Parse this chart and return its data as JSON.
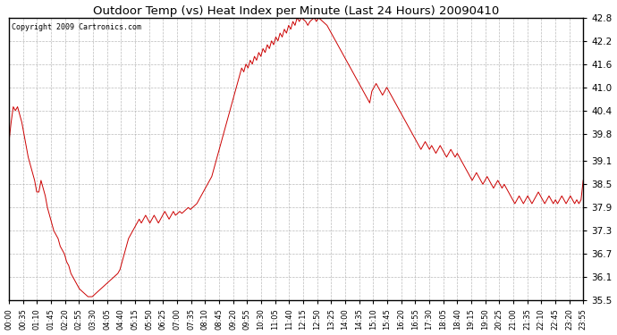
{
  "title": "Outdoor Temp (vs) Heat Index per Minute (Last 24 Hours) 20090410",
  "copyright": "Copyright 2009 Cartronics.com",
  "line_color": "#cc0000",
  "bg_color": "#ffffff",
  "plot_bg_color": "#ffffff",
  "grid_color": "#aaaaaa",
  "ylim": [
    35.5,
    42.8
  ],
  "yticks": [
    35.5,
    36.1,
    36.7,
    37.3,
    37.9,
    38.5,
    39.1,
    39.8,
    40.4,
    41.0,
    41.6,
    42.2,
    42.8
  ],
  "xtick_labels": [
    "00:00",
    "00:35",
    "01:10",
    "01:45",
    "02:20",
    "02:55",
    "03:30",
    "04:05",
    "04:40",
    "05:15",
    "05:50",
    "06:25",
    "07:00",
    "07:35",
    "08:10",
    "08:45",
    "09:20",
    "09:55",
    "10:30",
    "11:05",
    "11:40",
    "12:15",
    "12:50",
    "13:25",
    "14:00",
    "14:35",
    "15:10",
    "15:45",
    "16:20",
    "16:55",
    "17:30",
    "18:05",
    "18:40",
    "19:15",
    "19:50",
    "20:25",
    "21:00",
    "21:35",
    "22:10",
    "22:45",
    "23:20",
    "23:55"
  ],
  "data_y": [
    39.6,
    40.1,
    40.5,
    40.4,
    40.5,
    40.3,
    40.1,
    39.8,
    39.5,
    39.2,
    39.0,
    38.8,
    38.6,
    38.3,
    38.3,
    38.6,
    38.4,
    38.2,
    37.9,
    37.7,
    37.5,
    37.3,
    37.2,
    37.1,
    36.9,
    36.8,
    36.7,
    36.5,
    36.4,
    36.2,
    36.1,
    36.0,
    35.9,
    35.8,
    35.75,
    35.7,
    35.65,
    35.6,
    35.6,
    35.6,
    35.65,
    35.7,
    35.75,
    35.8,
    35.85,
    35.9,
    35.95,
    36.0,
    36.05,
    36.1,
    36.15,
    36.2,
    36.3,
    36.5,
    36.7,
    36.9,
    37.1,
    37.2,
    37.3,
    37.4,
    37.5,
    37.6,
    37.5,
    37.6,
    37.7,
    37.6,
    37.5,
    37.6,
    37.7,
    37.6,
    37.5,
    37.6,
    37.7,
    37.8,
    37.7,
    37.6,
    37.7,
    37.8,
    37.7,
    37.75,
    37.8,
    37.75,
    37.8,
    37.85,
    37.9,
    37.85,
    37.9,
    37.95,
    38.0,
    38.1,
    38.2,
    38.3,
    38.4,
    38.5,
    38.6,
    38.7,
    38.9,
    39.1,
    39.3,
    39.5,
    39.7,
    39.9,
    40.1,
    40.3,
    40.5,
    40.7,
    40.9,
    41.1,
    41.3,
    41.5,
    41.4,
    41.6,
    41.5,
    41.7,
    41.6,
    41.8,
    41.7,
    41.9,
    41.8,
    42.0,
    41.9,
    42.1,
    42.0,
    42.2,
    42.1,
    42.3,
    42.2,
    42.4,
    42.3,
    42.5,
    42.4,
    42.6,
    42.5,
    42.7,
    42.6,
    42.8,
    42.7,
    42.8,
    42.75,
    42.7,
    42.6,
    42.7,
    42.75,
    42.8,
    42.7,
    42.8,
    42.75,
    42.7,
    42.65,
    42.6,
    42.5,
    42.4,
    42.3,
    42.2,
    42.1,
    42.0,
    41.9,
    41.8,
    41.7,
    41.6,
    41.5,
    41.4,
    41.3,
    41.2,
    41.1,
    41.0,
    40.9,
    40.8,
    40.7,
    40.6,
    40.9,
    41.0,
    41.1,
    41.0,
    40.9,
    40.8,
    40.9,
    41.0,
    40.9,
    40.8,
    40.7,
    40.6,
    40.5,
    40.4,
    40.3,
    40.2,
    40.1,
    40.0,
    39.9,
    39.8,
    39.7,
    39.6,
    39.5,
    39.4,
    39.5,
    39.6,
    39.5,
    39.4,
    39.5,
    39.4,
    39.3,
    39.4,
    39.5,
    39.4,
    39.3,
    39.2,
    39.3,
    39.4,
    39.3,
    39.2,
    39.3,
    39.2,
    39.1,
    39.0,
    38.9,
    38.8,
    38.7,
    38.6,
    38.7,
    38.8,
    38.7,
    38.6,
    38.5,
    38.6,
    38.7,
    38.6,
    38.5,
    38.4,
    38.5,
    38.6,
    38.5,
    38.4,
    38.5,
    38.4,
    38.3,
    38.2,
    38.1,
    38.0,
    38.1,
    38.2,
    38.1,
    38.0,
    38.1,
    38.2,
    38.1,
    38.0,
    38.1,
    38.2,
    38.3,
    38.2,
    38.1,
    38.0,
    38.1,
    38.2,
    38.1,
    38.0,
    38.1,
    38.0,
    38.1,
    38.2,
    38.1,
    38.0,
    38.1,
    38.2,
    38.1,
    38.0,
    38.1,
    38.0,
    38.1,
    38.6
  ]
}
